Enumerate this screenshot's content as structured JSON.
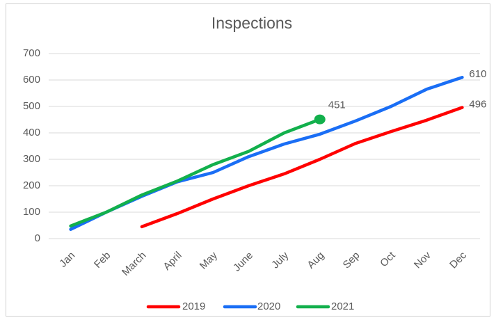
{
  "chart_data": {
    "type": "line",
    "title": "Inspections",
    "categories": [
      "Jan",
      "Feb",
      "March",
      "April",
      "May",
      "June",
      "July",
      "Aug",
      "Sep",
      "Oct",
      "Nov",
      "Dec"
    ],
    "series": [
      {
        "name": "2019",
        "color": "#ff0000",
        "values": [
          null,
          null,
          45,
          95,
          150,
          200,
          245,
          300,
          360,
          405,
          448,
          496
        ]
      },
      {
        "name": "2020",
        "color": "#1a6ef5",
        "values": [
          35,
          100,
          160,
          215,
          250,
          310,
          358,
          395,
          445,
          500,
          565,
          610
        ]
      },
      {
        "name": "2021",
        "color": "#12b04c",
        "marker": "circle",
        "values": [
          48,
          100,
          165,
          218,
          280,
          330,
          400,
          451,
          null,
          null,
          null,
          null
        ]
      }
    ],
    "ylim": [
      0,
      700
    ],
    "yticks": [
      0,
      100,
      200,
      300,
      400,
      500,
      600,
      700
    ],
    "grid": true,
    "legend": "bottom"
  }
}
